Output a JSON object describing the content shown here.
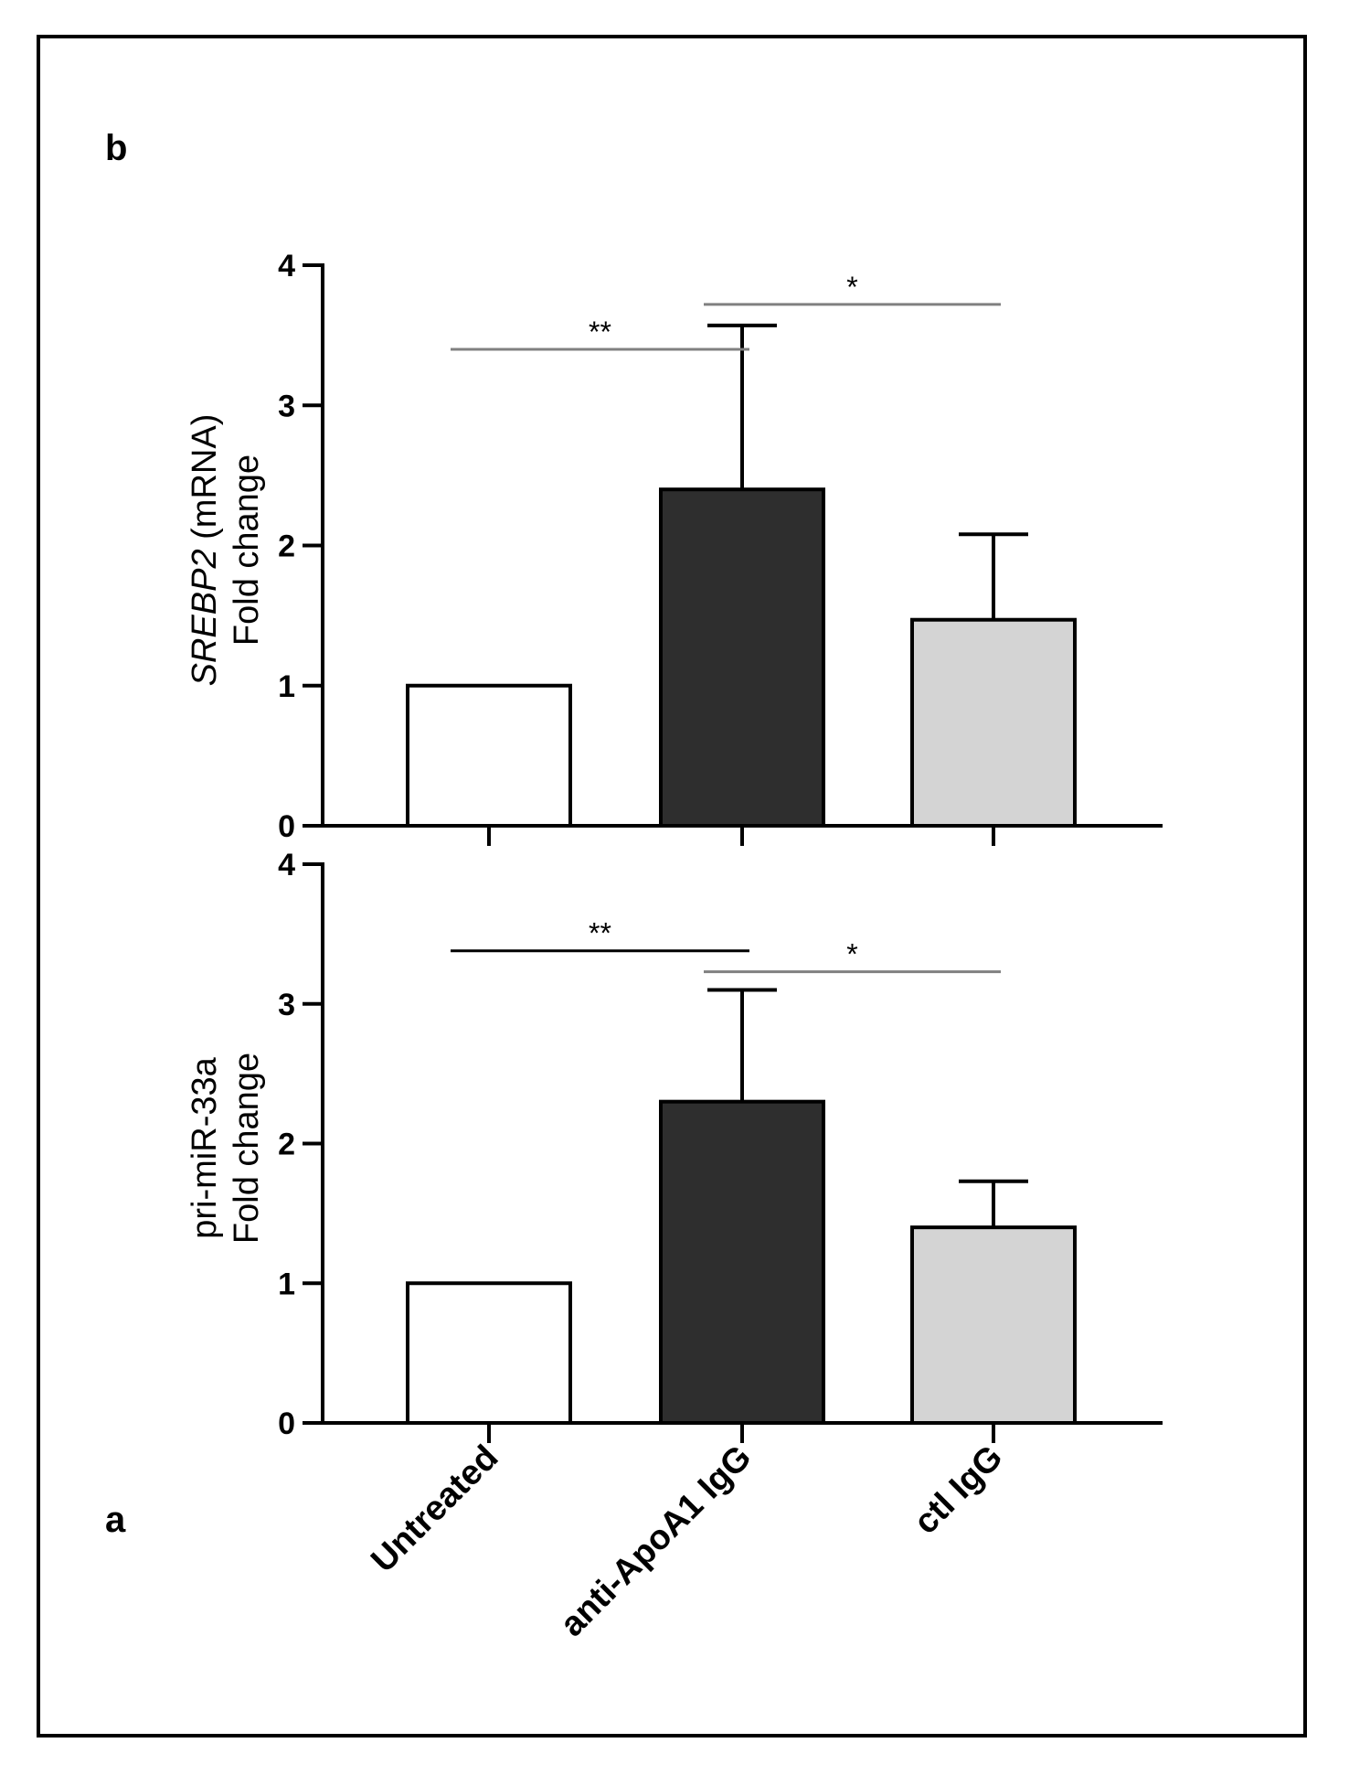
{
  "chart_data": [
    {
      "panel_label": "b",
      "type": "bar",
      "categories": [
        "Untreated",
        "anti-ApoA1 IgG",
        "ctl IgG"
      ],
      "values": [
        1.0,
        2.4,
        1.47
      ],
      "error_upper": [
        null,
        3.57,
        2.08
      ],
      "bar_colors": [
        "#ffffff",
        "#2e2e2e",
        "#d4d4d4"
      ],
      "ylabel_italic": "SREBP2",
      "ylabel_rest": " (mRNA)",
      "ylabel_line2": "Fold change",
      "ylim": [
        0,
        4
      ],
      "yticks": [
        "0",
        "1",
        "2",
        "3",
        "4"
      ],
      "significance": [
        {
          "label": "**",
          "from": 0,
          "to": 1,
          "y": 3.4,
          "color": "#808080"
        },
        {
          "label": "*",
          "from": 1,
          "to": 2,
          "y": 3.72,
          "color": "#808080"
        }
      ]
    },
    {
      "panel_label": "a",
      "type": "bar",
      "categories": [
        "Untreated",
        "anti-ApoA1 IgG",
        "ctl IgG"
      ],
      "values": [
        1.0,
        2.3,
        1.4
      ],
      "error_upper": [
        null,
        3.1,
        1.73
      ],
      "bar_colors": [
        "#ffffff",
        "#2e2e2e",
        "#d4d4d4"
      ],
      "ylabel_line1": "pri-miR-33a",
      "ylabel_line2": "Fold change",
      "ylim": [
        0,
        4
      ],
      "yticks": [
        "0",
        "1",
        "2",
        "3",
        "4"
      ],
      "significance": [
        {
          "label": "**",
          "from": 0,
          "to": 1,
          "y": 3.38,
          "color": "#000000"
        },
        {
          "label": "*",
          "from": 1,
          "to": 2,
          "y": 3.23,
          "color": "#808080"
        }
      ]
    }
  ],
  "category_labels": [
    "Untreated",
    "anti-ApoA1 IgG",
    "ctl IgG"
  ]
}
